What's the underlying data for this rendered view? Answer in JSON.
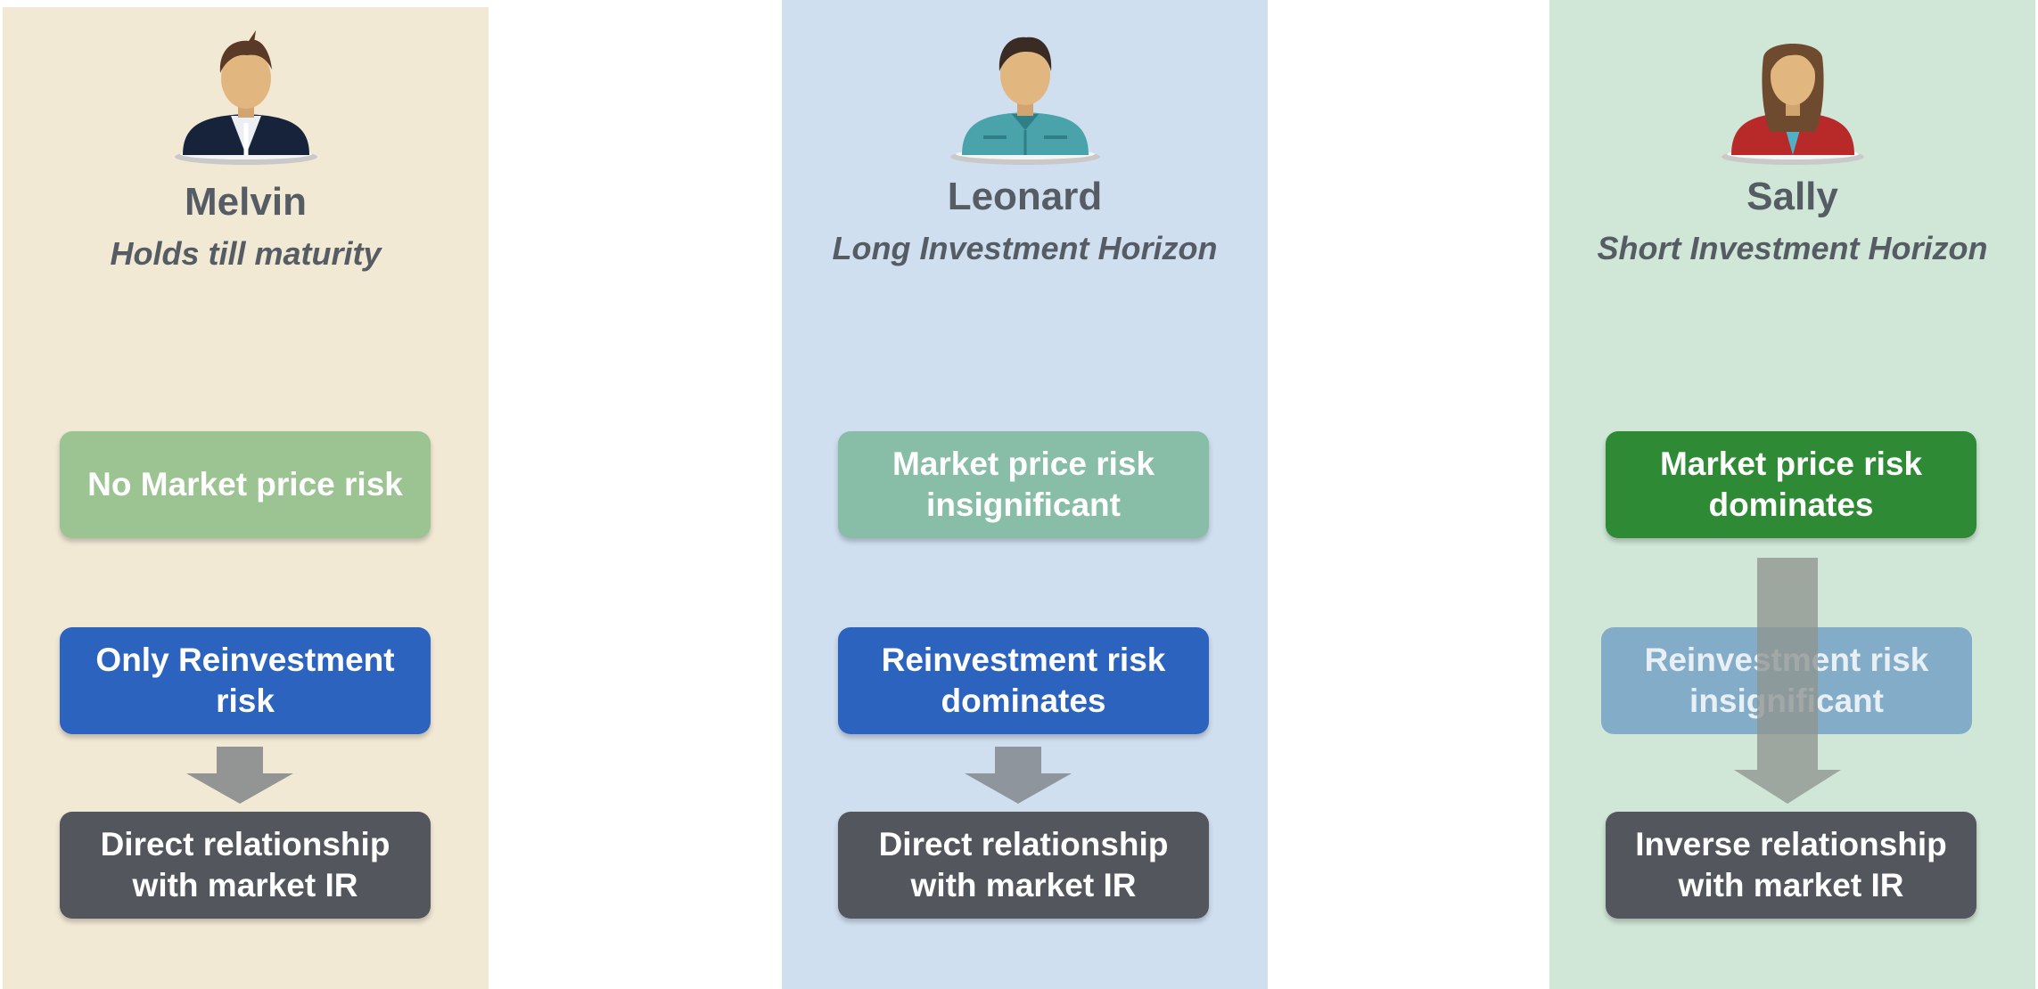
{
  "colors": {
    "melvin_bg": "#f2e9d5",
    "leonard_bg": "#d0dff0",
    "sally_bg": "#d0e6d6",
    "text_gray": "#565c64",
    "dark_box": "#53565c",
    "blue_box": "#2c63bf",
    "arrow": "#939494"
  },
  "columns": [
    {
      "name": "Melvin",
      "subtitle": "Holds till maturity",
      "box1": "No Market price risk",
      "box2": "Only Reinvestment risk",
      "box3": "Direct relationship with market IR",
      "avatar_icon": "businessman-avatar-icon"
    },
    {
      "name": "Leonard",
      "subtitle": "Long Investment Horizon",
      "box1": "Market price risk insignificant",
      "box2": "Reinvestment risk dominates",
      "box3": "Direct relationship with market IR",
      "avatar_icon": "casual-man-avatar-icon"
    },
    {
      "name": "Sally",
      "subtitle": "Short Investment Horizon",
      "box1": "Market price risk dominates",
      "box2": "Reinvestment  risk insignificant",
      "box3": "Inverse relationship with market IR",
      "avatar_icon": "woman-avatar-icon"
    }
  ]
}
